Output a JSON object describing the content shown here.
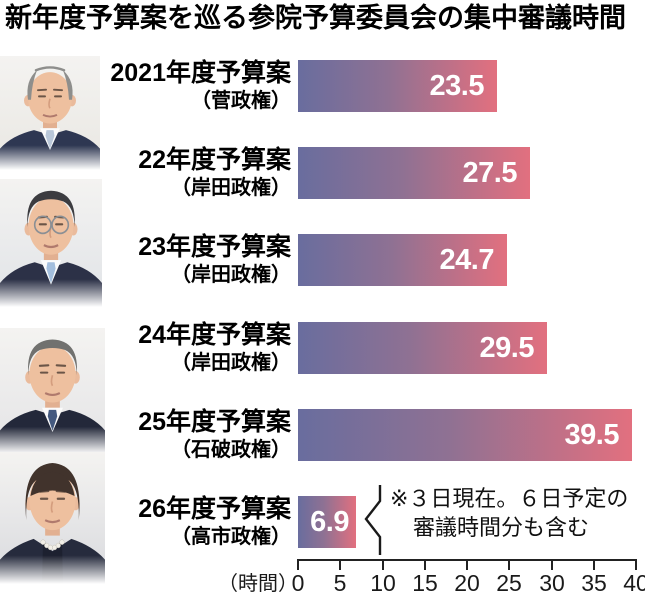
{
  "title": "新年度予算案を巡る参院予算委員会の集中審議時間",
  "chart_data": {
    "type": "bar",
    "orientation": "horizontal",
    "title": "新年度予算案を巡る参院予算委員会の集中審議時間",
    "unit_label": "（時間）",
    "xlim": [
      0,
      40
    ],
    "x_ticks": [
      0,
      5,
      10,
      15,
      20,
      25,
      30,
      35,
      40
    ],
    "grid": false,
    "rows": [
      {
        "label": "2021年度予算案",
        "sublabel": "（菅政権）",
        "value": 23.5
      },
      {
        "label": "22年度予算案",
        "sublabel": "（岸田政権）",
        "value": 27.5
      },
      {
        "label": "23年度予算案",
        "sublabel": "（岸田政権）",
        "value": 24.7
      },
      {
        "label": "24年度予算案",
        "sublabel": "（岸田政権）",
        "value": 29.5
      },
      {
        "label": "25年度予算案",
        "sublabel": "（石破政権）",
        "value": 39.5
      },
      {
        "label": "26年度予算案",
        "sublabel": "（高市政権）",
        "value": 6.9
      }
    ],
    "annotation": {
      "applies_to": "26年度予算案",
      "line1": "※３日現在。６日予定の",
      "line2": "審議時間分も含む"
    },
    "colors": {
      "bar_gradient_start": "#696d9e",
      "bar_gradient_mid": "#8f7193",
      "bar_gradient_end": "#e2707f",
      "value_text": "#ffffff",
      "axis": "#222222",
      "text": "#000000"
    }
  },
  "photos": [
    {
      "person": "suga"
    },
    {
      "person": "kishida"
    },
    {
      "person": "ishiba"
    },
    {
      "person": "takaichi"
    }
  ]
}
